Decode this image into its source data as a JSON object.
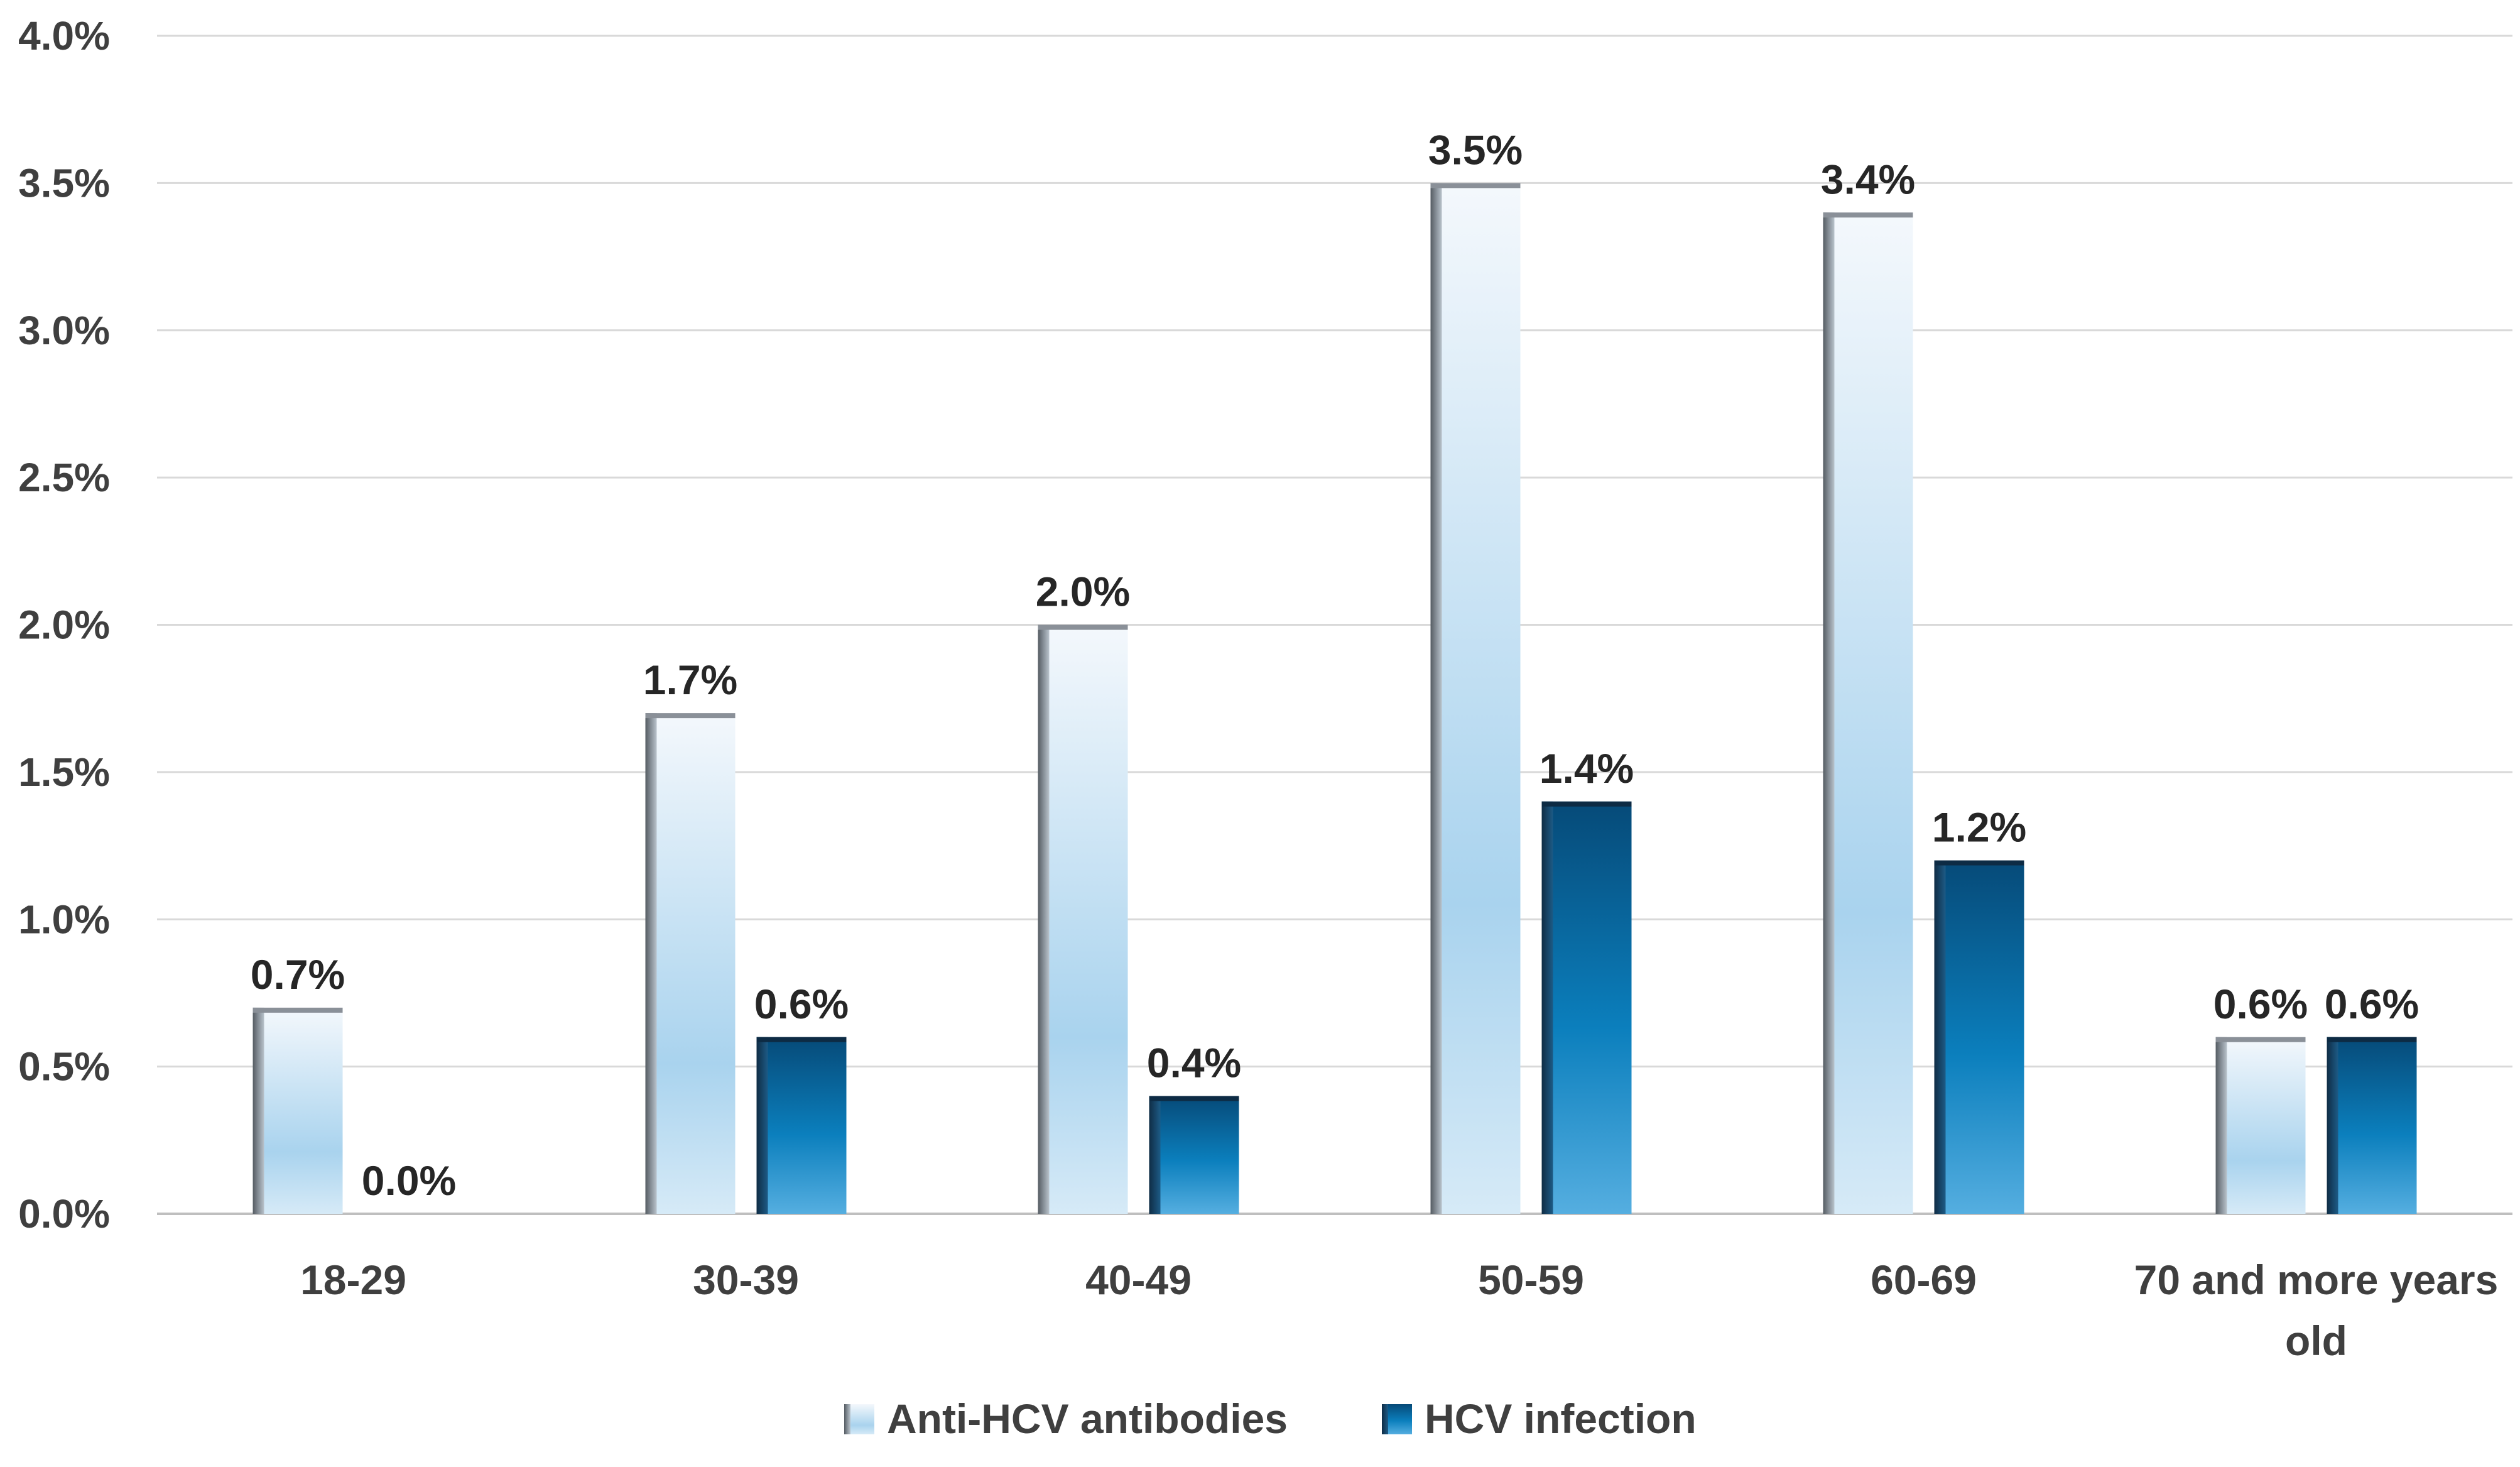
{
  "chart_data": {
    "type": "bar",
    "title": "",
    "xlabel": "",
    "ylabel": "",
    "categories": [
      "18-29",
      "30-39",
      "40-49",
      "50-59",
      "60-69",
      "70 and more years old"
    ],
    "category_lines": [
      [
        "18-29"
      ],
      [
        "30-39"
      ],
      [
        "40-49"
      ],
      [
        "50-59"
      ],
      [
        "60-69"
      ],
      [
        "70 and more years",
        "old"
      ]
    ],
    "ylim": [
      0,
      4.0
    ],
    "yticks": [
      0,
      0.5,
      1.0,
      1.5,
      2.0,
      2.5,
      3.0,
      3.5,
      4.0
    ],
    "ytick_labels": [
      "0.0%",
      "0.5%",
      "1.0%",
      "1.5%",
      "2.0%",
      "2.5%",
      "3.0%",
      "3.5%",
      "4.0%"
    ],
    "grid": true,
    "legend_position": "bottom",
    "series": [
      {
        "name": "Anti-HCV antibodies",
        "values": [
          0.7,
          1.7,
          2.0,
          3.5,
          3.4,
          0.6
        ],
        "labels": [
          "0.7%",
          "1.7%",
          "2.0%",
          "3.5%",
          "3.4%",
          "0.6%"
        ],
        "color": "#a9d3ee"
      },
      {
        "name": "HCV infection",
        "values": [
          0.0,
          0.6,
          0.4,
          1.4,
          1.2,
          0.6
        ],
        "labels": [
          "0.0%",
          "0.6%",
          "0.4%",
          "1.4%",
          "1.2%",
          "0.6%"
        ],
        "color": "#0a6fa8"
      }
    ]
  }
}
